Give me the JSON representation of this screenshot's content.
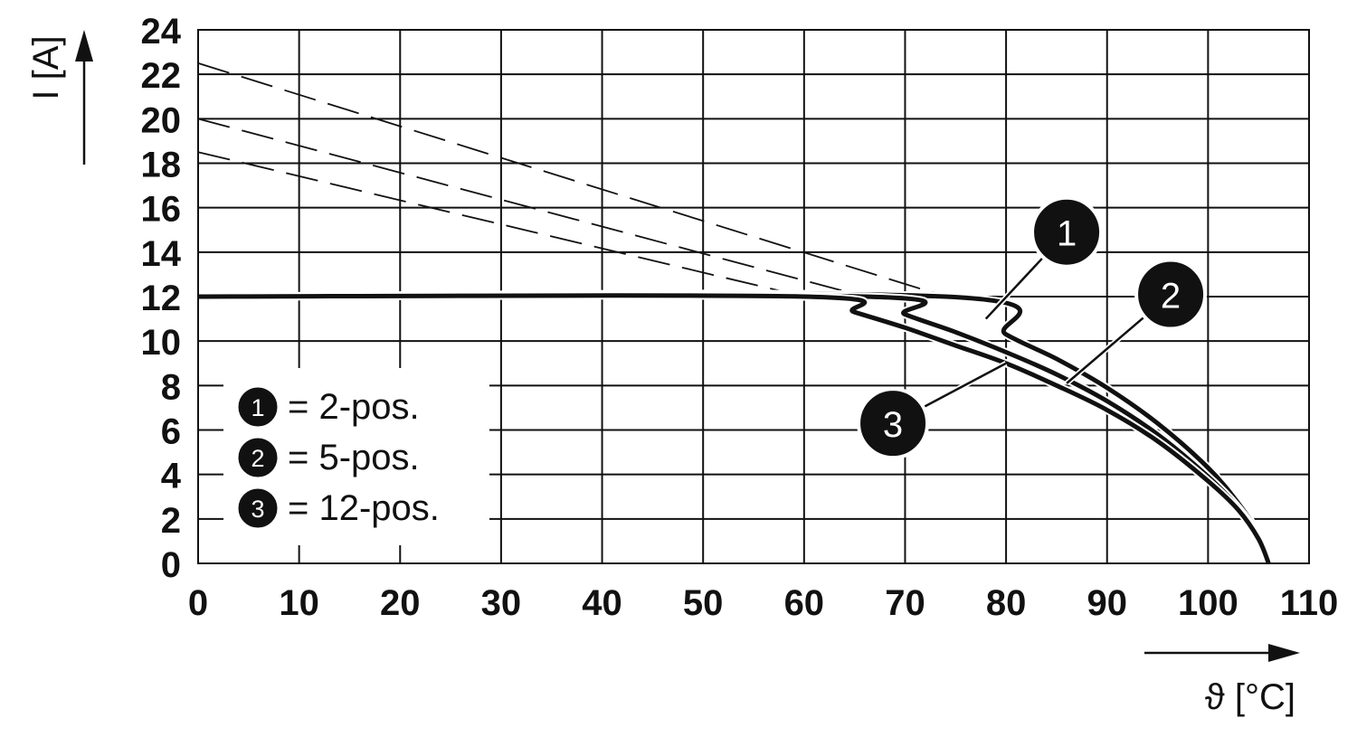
{
  "chart_data": {
    "type": "line",
    "xlabel": "ϑ [°C]",
    "ylabel": "I [A]",
    "xlim": [
      0,
      110
    ],
    "ylim": [
      0,
      24
    ],
    "x_ticks": [
      0,
      10,
      20,
      30,
      40,
      50,
      60,
      70,
      80,
      90,
      100,
      110
    ],
    "y_ticks": [
      0,
      2,
      4,
      6,
      8,
      10,
      12,
      14,
      16,
      18,
      20,
      22,
      24
    ],
    "grid": true,
    "legend_position": "bottom-left",
    "legend": [
      {
        "badge": "1",
        "label": "= 2-pos."
      },
      {
        "badge": "2",
        "label": "= 5-pos."
      },
      {
        "badge": "3",
        "label": "= 12-pos."
      }
    ],
    "series": [
      {
        "badge": "1",
        "x": [
          0,
          74,
          80,
          85,
          90,
          95,
          100,
          103,
          105,
          106
        ],
        "y": [
          12,
          12,
          10.3,
          9.2,
          7.9,
          6.3,
          4.3,
          2.7,
          1.3,
          0
        ]
      },
      {
        "badge": "2",
        "x": [
          0,
          66,
          70,
          75,
          80,
          85,
          90,
          95,
          100,
          103,
          105,
          106
        ],
        "y": [
          12,
          12,
          11.2,
          10.4,
          9.5,
          8.5,
          7.3,
          5.8,
          3.9,
          2.5,
          1.2,
          0
        ]
      },
      {
        "badge": "3",
        "x": [
          0,
          60,
          65,
          70,
          75,
          80,
          85,
          90,
          95,
          100,
          103,
          105,
          106
        ],
        "y": [
          12,
          12,
          11.3,
          10.6,
          9.8,
          9.0,
          8.0,
          6.9,
          5.5,
          3.7,
          2.4,
          1.1,
          0
        ]
      }
    ],
    "dashed_series": [
      {
        "badge": "1",
        "x": [
          0,
          74
        ],
        "y": [
          22.5,
          12
        ]
      },
      {
        "badge": "2",
        "x": [
          0,
          66
        ],
        "y": [
          20.0,
          12
        ]
      },
      {
        "badge": "3",
        "x": [
          0,
          60
        ],
        "y": [
          18.5,
          12
        ]
      }
    ],
    "callouts": [
      {
        "badge": "1",
        "point_x": 78,
        "point_y": 11.0,
        "badge_x": 86.0,
        "badge_y": 14.9
      },
      {
        "badge": "2",
        "point_x": 86,
        "point_y": 8.1,
        "badge_x": 96.3,
        "badge_y": 12.1
      },
      {
        "badge": "3",
        "point_x": 80,
        "point_y": 9.0,
        "badge_x": 68.8,
        "badge_y": 6.3
      }
    ]
  }
}
